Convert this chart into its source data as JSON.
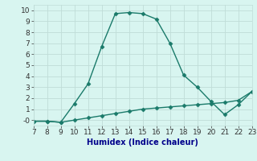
{
  "title": "",
  "xlabel": "Humidex (Indice chaleur)",
  "x": [
    7,
    8,
    9,
    10,
    11,
    12,
    13,
    14,
    15,
    16,
    17,
    18,
    19,
    20,
    21,
    22,
    23
  ],
  "y_main": [
    -0.1,
    -0.1,
    -0.2,
    1.5,
    3.3,
    6.7,
    9.7,
    9.8,
    9.7,
    9.2,
    7.0,
    4.1,
    3.0,
    1.7,
    0.5,
    1.4,
    2.6
  ],
  "y_lower": [
    -0.1,
    -0.1,
    -0.2,
    0.0,
    0.2,
    0.4,
    0.6,
    0.8,
    1.0,
    1.1,
    1.2,
    1.3,
    1.4,
    1.5,
    1.6,
    1.8,
    2.6
  ],
  "line_color": "#1a7a6a",
  "bg_color": "#d8f5f0",
  "grid_color": "#c0ddd8",
  "xlim": [
    7,
    23
  ],
  "ylim": [
    -0.5,
    10.5
  ],
  "xticks": [
    7,
    8,
    9,
    10,
    11,
    12,
    13,
    14,
    15,
    16,
    17,
    18,
    19,
    20,
    21,
    22,
    23
  ],
  "yticks": [
    0,
    1,
    2,
    3,
    4,
    5,
    6,
    7,
    8,
    9,
    10
  ],
  "ytick_labels": [
    "-0",
    "1",
    "2",
    "3",
    "4",
    "5",
    "6",
    "7",
    "8",
    "9",
    "10"
  ],
  "marker": "D",
  "markersize": 2.5,
  "linewidth": 1.0,
  "fontsize_label": 7,
  "fontsize_tick": 6.5,
  "label_color": "#00008b"
}
